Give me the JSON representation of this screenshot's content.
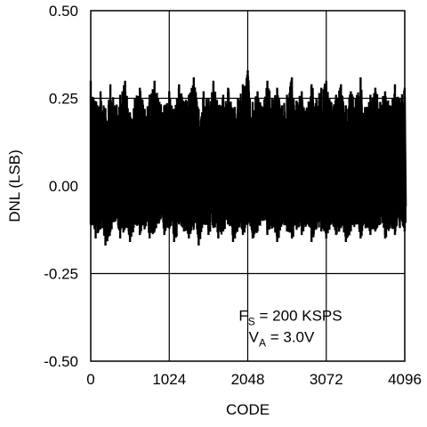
{
  "chart_data": {
    "type": "line",
    "title": "",
    "xlabel": "CODE",
    "ylabel": "DNL (LSB)",
    "xlim": [
      0,
      4096
    ],
    "ylim": [
      -0.5,
      0.5
    ],
    "x_ticks": [
      0,
      1024,
      2048,
      3072,
      4096
    ],
    "x_tick_labels": [
      "0",
      "1024",
      "2048",
      "3072",
      "4096"
    ],
    "y_ticks": [
      0.5,
      0.25,
      0.0,
      -0.25,
      -0.5
    ],
    "y_tick_labels": [
      "0.50",
      "0.25",
      "0.00",
      "-0.25",
      "-0.50"
    ],
    "grid": true,
    "annotation": {
      "line1": {
        "main": "F",
        "sub": "S",
        "rest": " = 200 KSPS"
      },
      "line2": {
        "main": "V",
        "sub": "A",
        "rest": " = 3.0V"
      }
    },
    "series": [
      {
        "description_values": "DNL noise band; upper envelope and lower envelope sampled along codes",
        "x": [
          0,
          64,
          128,
          192,
          256,
          320,
          384,
          448,
          512,
          576,
          640,
          704,
          768,
          832,
          896,
          960,
          1024,
          1088,
          1152,
          1216,
          1280,
          1344,
          1408,
          1472,
          1536,
          1600,
          1664,
          1728,
          1792,
          1856,
          1920,
          1984,
          2048,
          2112,
          2176,
          2240,
          2304,
          2368,
          2432,
          2496,
          2560,
          2624,
          2688,
          2752,
          2816,
          2880,
          2944,
          3008,
          3072,
          3136,
          3200,
          3264,
          3328,
          3392,
          3456,
          3520,
          3584,
          3648,
          3712,
          3776,
          3840,
          3904,
          3968,
          4032,
          4095
        ],
        "upper": [
          0.3,
          0.24,
          0.27,
          0.22,
          0.29,
          0.23,
          0.26,
          0.3,
          0.21,
          0.25,
          0.28,
          0.22,
          0.26,
          0.3,
          0.24,
          0.23,
          0.27,
          0.22,
          0.29,
          0.24,
          0.26,
          0.31,
          0.22,
          0.27,
          0.25,
          0.3,
          0.23,
          0.26,
          0.28,
          0.22,
          0.25,
          0.29,
          0.33,
          0.24,
          0.27,
          0.22,
          0.3,
          0.25,
          0.28,
          0.23,
          0.26,
          0.31,
          0.24,
          0.27,
          0.22,
          0.29,
          0.25,
          0.28,
          0.3,
          0.24,
          0.26,
          0.29,
          0.23,
          0.27,
          0.25,
          0.31,
          0.22,
          0.26,
          0.28,
          0.24,
          0.27,
          0.23,
          0.29,
          0.25,
          0.28
        ],
        "lower": [
          -0.11,
          -0.15,
          -0.12,
          -0.17,
          -0.13,
          -0.1,
          -0.15,
          -0.12,
          -0.16,
          -0.11,
          -0.14,
          -0.12,
          -0.15,
          -0.13,
          -0.1,
          -0.14,
          -0.12,
          -0.16,
          -0.11,
          -0.13,
          -0.15,
          -0.12,
          -0.17,
          -0.11,
          -0.14,
          -0.12,
          -0.15,
          -0.13,
          -0.11,
          -0.16,
          -0.12,
          -0.14,
          -0.11,
          -0.15,
          -0.13,
          -0.1,
          -0.14,
          -0.12,
          -0.16,
          -0.11,
          -0.13,
          -0.15,
          -0.12,
          -0.14,
          -0.11,
          -0.16,
          -0.12,
          -0.13,
          -0.15,
          -0.11,
          -0.14,
          -0.12,
          -0.16,
          -0.13,
          -0.11,
          -0.15,
          -0.12,
          -0.14,
          -0.13,
          -0.11,
          -0.15,
          -0.12,
          -0.14,
          -0.12,
          -0.13
        ]
      }
    ]
  }
}
